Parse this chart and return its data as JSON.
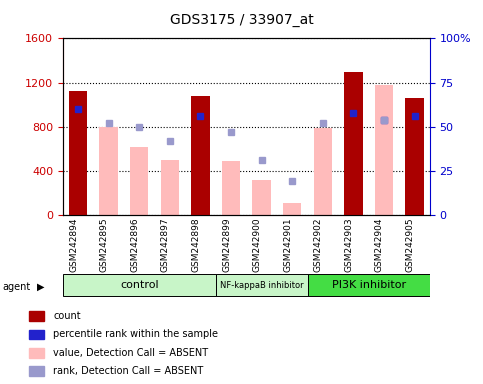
{
  "title": "GDS3175 / 33907_at",
  "samples": [
    "GSM242894",
    "GSM242895",
    "GSM242896",
    "GSM242897",
    "GSM242898",
    "GSM242899",
    "GSM242900",
    "GSM242901",
    "GSM242902",
    "GSM242903",
    "GSM242904",
    "GSM242905"
  ],
  "red_bars": [
    1120,
    null,
    null,
    null,
    1080,
    null,
    null,
    null,
    null,
    1300,
    null,
    1060
  ],
  "pink_bars": [
    null,
    800,
    620,
    500,
    null,
    490,
    320,
    110,
    790,
    null,
    1180,
    null
  ],
  "blue_squares_pct": [
    60,
    null,
    null,
    null,
    56,
    null,
    null,
    null,
    null,
    58,
    54,
    56
  ],
  "lavender_squares_pct": [
    null,
    52,
    50,
    42,
    null,
    47,
    31,
    19,
    52,
    null,
    54,
    null
  ],
  "group_boundaries": [
    0,
    5,
    8,
    12
  ],
  "group_labels": [
    "control",
    "NF-kappaB inhibitor",
    "PI3K inhibitor"
  ],
  "group_colors": [
    "#c8f5c8",
    "#c8f5c8",
    "#44dd44"
  ],
  "ylim_left": [
    0,
    1600
  ],
  "ylim_right": [
    0,
    100
  ],
  "yticks_left": [
    0,
    400,
    800,
    1200,
    1600
  ],
  "yticks_right": [
    0,
    25,
    50,
    75,
    100
  ],
  "left_axis_color": "#cc0000",
  "right_axis_color": "#0000cc",
  "red_bar_color": "#aa0000",
  "pink_bar_color": "#ffbbbb",
  "blue_sq_color": "#2222cc",
  "lavender_sq_color": "#9999cc",
  "agent_label": "agent"
}
